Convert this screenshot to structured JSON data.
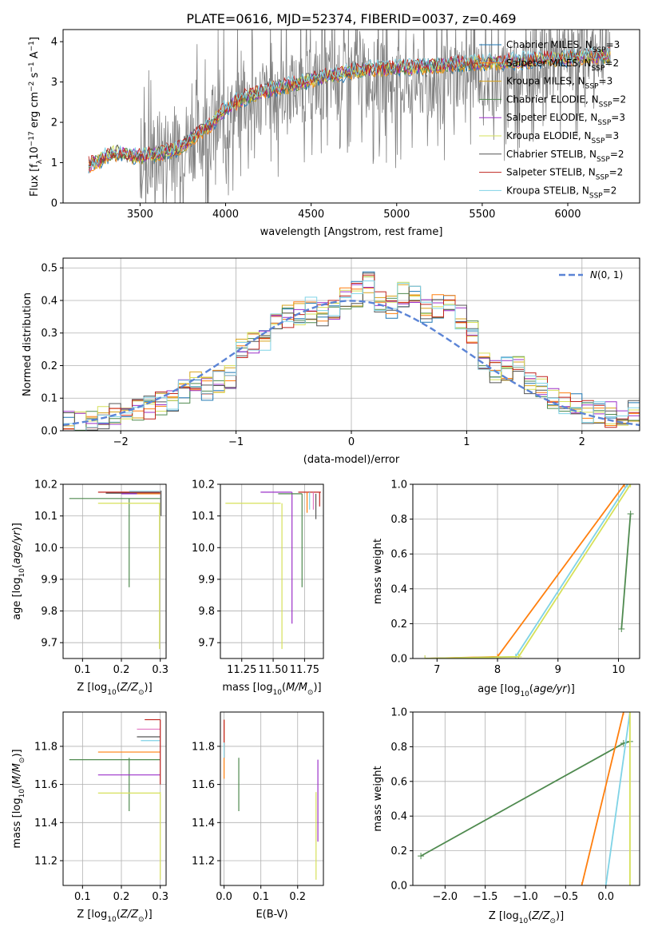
{
  "figure": {
    "title": "PLATE=0616, MJD=52374, FIBERID=0037, z=0.469"
  },
  "series_colors": [
    "#1f77b4",
    "#ff7f0e",
    "#d7a21a",
    "#4f8a4f",
    "#9b30c9",
    "#d6e05a",
    "#555555",
    "#c0241f",
    "#7fd3e6"
  ],
  "chart_data": [
    {
      "id": "spectrum",
      "type": "line",
      "xlabel": "wavelength [Angstrom, rest frame]",
      "ylabel": "Flux [f_λ 10^-17 erg cm^-2 s^-1 A^-1]",
      "xlim": [
        3050,
        6420
      ],
      "ylim": [
        0,
        4.3
      ],
      "xticks": [
        3500,
        4000,
        4500,
        5000,
        5500,
        6000
      ],
      "yticks": [
        0,
        1,
        2,
        3,
        4
      ],
      "grid": false,
      "legend": "top-right",
      "data_x": [
        3200,
        3350,
        3500,
        3700,
        3900,
        4000,
        4100,
        4200,
        4400,
        4600,
        4800,
        5000,
        5200,
        5400,
        5600,
        5800,
        6000,
        6200
      ],
      "data_y": [
        0.95,
        1.2,
        1.1,
        1.4,
        1.8,
        2.0,
        2.5,
        2.6,
        2.85,
        3.0,
        3.2,
        3.0,
        2.9,
        3.3,
        3.0,
        3.5,
        3.6,
        3.8
      ],
      "model_x": [
        3200,
        3350,
        3500,
        3700,
        3900,
        4000,
        4100,
        4200,
        4400,
        4600,
        4800,
        5000,
        5200,
        5400,
        5600,
        5800,
        6000,
        6200
      ],
      "model_y": [
        0.95,
        1.25,
        1.15,
        1.3,
        1.9,
        2.35,
        2.6,
        2.75,
        2.95,
        3.15,
        3.3,
        3.35,
        3.4,
        3.45,
        3.5,
        3.55,
        3.6,
        3.65
      ],
      "legend_entries": [
        {
          "label": "Chabrier MILES, N_SSP=3",
          "base": "Chabrier MILES, N",
          "sub": "SSP",
          "tail": "=3",
          "color": "#1f77b4"
        },
        {
          "label": "Salpeter MILES, N_SSP=2",
          "base": "Salpeter MILES, N",
          "sub": "SSP",
          "tail": "=2",
          "color": "#ff7f0e"
        },
        {
          "label": "Kroupa MILES, N_SSP=3",
          "base": "Kroupa MILES, N",
          "sub": "SSP",
          "tail": "=3",
          "color": "#d7a21a"
        },
        {
          "label": "Chabrier ELODIE, N_SSP=2",
          "base": "Chabrier ELODIE, N",
          "sub": "SSP",
          "tail": "=2",
          "color": "#4f8a4f"
        },
        {
          "label": "Salpeter ELODIE, N_SSP=3",
          "base": "Salpeter ELODIE, N",
          "sub": "SSP",
          "tail": "=3",
          "color": "#9b30c9"
        },
        {
          "label": "Kroupa ELODIE, N_SSP=3",
          "base": "Kroupa ELODIE, N",
          "sub": "SSP",
          "tail": "=3",
          "color": "#d6e05a"
        },
        {
          "label": "Chabrier STELIB, N_SSP=2",
          "base": "Chabrier STELIB, N",
          "sub": "SSP",
          "tail": "=2",
          "color": "#555555"
        },
        {
          "label": "Salpeter STELIB, N_SSP=2",
          "base": "Salpeter STELIB, N",
          "sub": "SSP",
          "tail": "=2",
          "color": "#c0241f"
        },
        {
          "label": "Kroupa STELIB, N_SSP=2",
          "base": "Kroupa STELIB, N",
          "sub": "SSP",
          "tail": "=2",
          "color": "#7fd3e6"
        }
      ]
    },
    {
      "id": "residuals",
      "type": "line",
      "xlabel": "(data-model)/error",
      "ylabel": "Normed distribution",
      "xlim": [
        -2.5,
        2.5
      ],
      "ylim": [
        0,
        0.53
      ],
      "xticks": [
        -2,
        -1,
        0,
        1,
        2
      ],
      "yticks": [
        0.0,
        0.1,
        0.2,
        0.3,
        0.4,
        0.5
      ],
      "grid": true,
      "legend": "top-right",
      "legend_label": "N(0,1)",
      "gauss_color": "#5b84d6",
      "histogram": {
        "bins": [
          -2.5,
          -2.4,
          -2.3,
          -2.2,
          -2.1,
          -2.0,
          -1.9,
          -1.8,
          -1.7,
          -1.6,
          -1.5,
          -1.4,
          -1.3,
          -1.2,
          -1.1,
          -1.0,
          -0.9,
          -0.8,
          -0.7,
          -0.6,
          -0.5,
          -0.4,
          -0.3,
          -0.2,
          -0.1,
          0.0,
          0.1,
          0.2,
          0.3,
          0.4,
          0.5,
          0.6,
          0.7,
          0.8,
          0.9,
          1.0,
          1.1,
          1.2,
          1.3,
          1.4,
          1.5,
          1.6,
          1.7,
          1.8,
          1.9,
          2.0,
          2.1,
          2.2,
          2.3,
          2.4
        ],
        "heights": [
          0.02,
          0.02,
          0.03,
          0.04,
          0.05,
          0.05,
          0.06,
          0.07,
          0.08,
          0.1,
          0.12,
          0.15,
          0.13,
          0.15,
          0.16,
          0.25,
          0.27,
          0.28,
          0.33,
          0.35,
          0.36,
          0.37,
          0.36,
          0.38,
          0.4,
          0.42,
          0.45,
          0.4,
          0.38,
          0.42,
          0.41,
          0.37,
          0.38,
          0.39,
          0.35,
          0.3,
          0.22,
          0.18,
          0.19,
          0.21,
          0.15,
          0.13,
          0.1,
          0.09,
          0.08,
          0.06,
          0.06,
          0.05,
          0.05,
          0.06
        ]
      }
    },
    {
      "id": "age-vs-Z",
      "type": "scatter",
      "xlabel": "Z [log10(Z/Z☉)]",
      "ylabel": "age [log10(age/yr)]",
      "xlim": [
        0.05,
        0.315
      ],
      "ylim": [
        9.65,
        10.2
      ],
      "xticks": [
        0.1,
        0.2,
        0.3
      ],
      "yticks": [
        9.7,
        9.8,
        9.9,
        10.0,
        10.1,
        10.2
      ],
      "grid": true
    },
    {
      "id": "age-vs-mass",
      "type": "scatter",
      "xlabel": "mass [log10(M/M☉)]",
      "ylabel": "",
      "xlim": [
        11.08,
        11.9
      ],
      "ylim": [
        9.65,
        10.2
      ],
      "xticks": [
        11.25,
        11.5,
        11.75
      ],
      "yticks": [
        9.7,
        9.8,
        9.9,
        10.0,
        10.1,
        10.2
      ],
      "grid": true
    },
    {
      "id": "mass-weight-vs-age",
      "type": "line",
      "xlabel": "age [log10(age/yr)]",
      "ylabel": "mass weight",
      "xlim": [
        6.6,
        10.35
      ],
      "ylim": [
        0,
        1
      ],
      "xticks": [
        7,
        8,
        9,
        10
      ],
      "yticks": [
        0.0,
        0.2,
        0.4,
        0.6,
        0.8,
        1.0
      ],
      "grid": true,
      "series": [
        {
          "x": [
            6.8,
            8.0,
            10.1
          ],
          "y": [
            0.0,
            0.01,
            1.0
          ],
          "color": "#ff7f0e"
        },
        {
          "x": [
            6.8,
            8.3,
            10.15
          ],
          "y": [
            0.0,
            0.01,
            1.0
          ],
          "color": "#7fd3e6"
        },
        {
          "x": [
            6.8,
            8.35,
            10.2
          ],
          "y": [
            0.0,
            0.01,
            1.0
          ],
          "color": "#d6e05a"
        },
        {
          "x": [
            10.05,
            10.2
          ],
          "y": [
            0.17,
            0.83
          ],
          "color": "#4f8a4f"
        }
      ]
    },
    {
      "id": "mass-vs-Z",
      "type": "scatter",
      "xlabel": "Z [log10(Z/Z☉)]",
      "ylabel": "mass [log10(M/M☉)]",
      "xlim": [
        0.05,
        0.315
      ],
      "ylim": [
        11.07,
        11.98
      ],
      "xticks": [
        0.1,
        0.2,
        0.3
      ],
      "yticks": [
        11.2,
        11.4,
        11.6,
        11.8
      ],
      "grid": true
    },
    {
      "id": "mass-vs-ebv",
      "type": "scatter",
      "xlabel": "E(B-V)",
      "ylabel": "",
      "xlim": [
        -0.01,
        0.27
      ],
      "ylim": [
        11.07,
        11.98
      ],
      "xticks": [
        0.0,
        0.1,
        0.2
      ],
      "yticks": [
        11.2,
        11.4,
        11.6,
        11.8
      ],
      "grid": true
    },
    {
      "id": "mass-weight-vs-Z",
      "type": "line",
      "xlabel": "Z [log10(Z/Z☉)]",
      "ylabel": "mass weight",
      "xlim": [
        -2.4,
        0.42
      ],
      "ylim": [
        0,
        1
      ],
      "xticks": [
        -2.0,
        -1.5,
        -1.0,
        -0.5,
        0.0
      ],
      "yticks": [
        0.0,
        0.2,
        0.4,
        0.6,
        0.8,
        1.0
      ],
      "grid": true,
      "series": [
        {
          "x": [
            -2.3,
            0.22,
            0.3
          ],
          "y": [
            0.17,
            0.82,
            0.83
          ],
          "color": "#4f8a4f"
        },
        {
          "x": [
            -0.3,
            0.22
          ],
          "y": [
            0.0,
            1.0
          ],
          "color": "#ff7f0e"
        },
        {
          "x": [
            0.0,
            0.3
          ],
          "y": [
            0.0,
            1.0
          ],
          "color": "#7fd3e6"
        },
        {
          "x": [
            0.3,
            0.3
          ],
          "y": [
            0.0,
            1.0
          ],
          "color": "#d6e05a"
        }
      ]
    }
  ]
}
